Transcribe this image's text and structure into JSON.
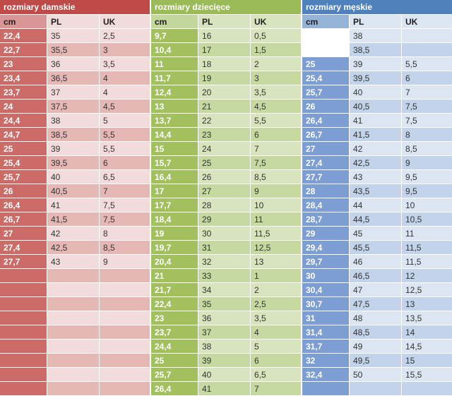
{
  "chart_data": [
    {
      "type": "table",
      "title": "rozmiary damskie",
      "columns": [
        "cm",
        "PL",
        "UK"
      ],
      "theme": {
        "title": "#be4b48",
        "cmhead": "#d99694",
        "cm": "#cc6c69",
        "light": "#f2dcdb",
        "dark": "#e5b8b6"
      },
      "white_cells": [],
      "rows": [
        [
          "22,4",
          "35",
          "2,5"
        ],
        [
          "22,7",
          "35,5",
          "3"
        ],
        [
          "23",
          "36",
          "3,5"
        ],
        [
          "23,4",
          "36,5",
          "4"
        ],
        [
          "23,7",
          "37",
          "4"
        ],
        [
          "24",
          "37,5",
          "4,5"
        ],
        [
          "24,4",
          "38",
          "5"
        ],
        [
          "24,7",
          "38,5",
          "5,5"
        ],
        [
          "25",
          "39",
          "5,5"
        ],
        [
          "25,4",
          "39,5",
          "6"
        ],
        [
          "25,7",
          "40",
          "6,5"
        ],
        [
          "26",
          "40,5",
          "7"
        ],
        [
          "26,4",
          "41",
          "7,5"
        ],
        [
          "26,7",
          "41,5",
          "7,5"
        ],
        [
          "27",
          "42",
          "8"
        ],
        [
          "27,4",
          "42,5",
          "8,5"
        ],
        [
          "27,7",
          "43",
          "9"
        ],
        [
          "",
          "",
          ""
        ],
        [
          "",
          "",
          ""
        ],
        [
          "",
          "",
          ""
        ],
        [
          "",
          "",
          ""
        ],
        [
          "",
          "",
          ""
        ],
        [
          "",
          "",
          ""
        ],
        [
          "",
          "",
          ""
        ],
        [
          "",
          "",
          ""
        ],
        [
          "",
          "",
          ""
        ]
      ]
    },
    {
      "type": "table",
      "title": "rozmiary dziecięce",
      "columns": [
        "cm",
        "PL",
        "UK"
      ],
      "theme": {
        "title": "#9bbb59",
        "cmhead": "#c3d69b",
        "cm": "#a2c05e",
        "light": "#d8e4bd",
        "dark": "#c6d9a0"
      },
      "white_cells": [],
      "rows": [
        [
          "9,7",
          "16",
          "0,5"
        ],
        [
          "10,4",
          "17",
          "1,5"
        ],
        [
          "11",
          "18",
          "2"
        ],
        [
          "11,7",
          "19",
          "3"
        ],
        [
          "12,4",
          "20",
          "3,5"
        ],
        [
          "13",
          "21",
          "4,5"
        ],
        [
          "13,7",
          "22",
          "5,5"
        ],
        [
          "14,4",
          "23",
          "6"
        ],
        [
          "15",
          "24",
          "7"
        ],
        [
          "15,7",
          "25",
          "7,5"
        ],
        [
          "16,4",
          "26",
          "8,5"
        ],
        [
          "17",
          "27",
          "9"
        ],
        [
          "17,7",
          "28",
          "10"
        ],
        [
          "18,4",
          "29",
          "11"
        ],
        [
          "19",
          "30",
          "11,5"
        ],
        [
          "19,7",
          "31",
          "12,5"
        ],
        [
          "20,4",
          "32",
          "13"
        ],
        [
          "21",
          "33",
          "1"
        ],
        [
          "21,7",
          "34",
          "2"
        ],
        [
          "22,4",
          "35",
          "2,5"
        ],
        [
          "23",
          "36",
          "3,5"
        ],
        [
          "23,7",
          "37",
          "4"
        ],
        [
          "24,4",
          "38",
          "5"
        ],
        [
          "25",
          "39",
          "6"
        ],
        [
          "25,7",
          "40",
          "6,5"
        ],
        [
          "26,4",
          "41",
          "7"
        ]
      ]
    },
    {
      "type": "table",
      "title": "rozmiary męskie",
      "columns": [
        "cm",
        "PL",
        "UK"
      ],
      "theme": {
        "title": "#4f81bd",
        "cmhead": "#95b3d7",
        "cm": "#7d9ed2",
        "light": "#dce6f2",
        "dark": "#c3d3ea"
      },
      "white_cells": [
        [
          0,
          0
        ],
        [
          1,
          0
        ]
      ],
      "rows": [
        [
          "",
          "38",
          ""
        ],
        [
          "",
          "38,5",
          ""
        ],
        [
          "25",
          "39",
          "5,5"
        ],
        [
          "25,4",
          "39,5",
          "6"
        ],
        [
          "25,7",
          "40",
          "7"
        ],
        [
          "26",
          "40,5",
          "7,5"
        ],
        [
          "26,4",
          "41",
          "7,5"
        ],
        [
          "26,7",
          "41,5",
          "8"
        ],
        [
          "27",
          "42",
          "8,5"
        ],
        [
          "27,4",
          "42,5",
          "9"
        ],
        [
          "27,7",
          "43",
          "9,5"
        ],
        [
          "28",
          "43,5",
          "9,5"
        ],
        [
          "28,4",
          "44",
          "10"
        ],
        [
          "28,7",
          "44,5",
          "10,5"
        ],
        [
          "29",
          "45",
          "11"
        ],
        [
          "29,4",
          "45,5",
          "11,5"
        ],
        [
          "29,7",
          "46",
          "11,5"
        ],
        [
          "30",
          "46,5",
          "12"
        ],
        [
          "30,4",
          "47",
          "12,5"
        ],
        [
          "30,7",
          "47,5",
          "13"
        ],
        [
          "31",
          "48",
          "13,5"
        ],
        [
          "31,4",
          "48,5",
          "14"
        ],
        [
          "31,7",
          "49",
          "14,5"
        ],
        [
          "32",
          "49,5",
          "15"
        ],
        [
          "32,4",
          "50",
          "15,5"
        ],
        [
          "",
          "",
          ""
        ]
      ]
    }
  ]
}
